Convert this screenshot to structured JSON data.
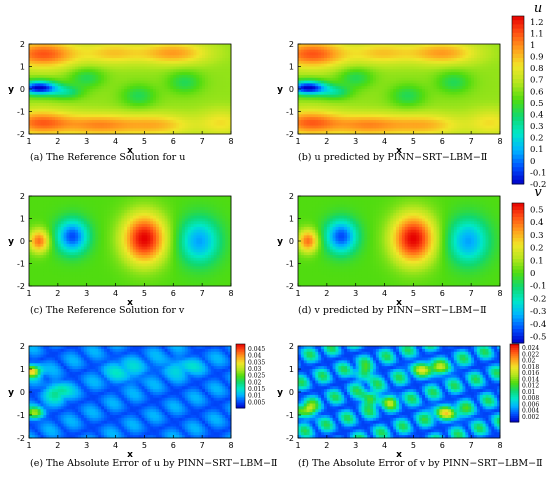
{
  "chart_data": [
    {
      "type": "heatmap",
      "title": "",
      "caption": "(a) The Reference Solution for u",
      "xlabel": "x",
      "ylabel": "y",
      "xlim": [
        1,
        8
      ],
      "ylim": [
        -2,
        2
      ],
      "xticks": [
        "1",
        "2",
        "3",
        "4",
        "5",
        "6",
        "7",
        "8"
      ],
      "yticks": [
        "2",
        "1",
        "0",
        "-1",
        "-2"
      ],
      "field": "u"
    },
    {
      "type": "heatmap",
      "title": "",
      "caption": "(b) u predicted by PINN−SRT−LBM−Ⅱ",
      "xlabel": "x",
      "ylabel": "y",
      "xlim": [
        1,
        8
      ],
      "ylim": [
        -2,
        2
      ],
      "xticks": [
        "1",
        "2",
        "3",
        "4",
        "5",
        "6",
        "7",
        "8"
      ],
      "yticks": [
        "2",
        "1",
        "0",
        "-1",
        "-2"
      ],
      "field": "u",
      "colorbar": {
        "title": "u",
        "range": [
          -0.2,
          1.25
        ],
        "ticks": [
          "1.2",
          "1.1",
          "1",
          "0.9",
          "0.8",
          "0.7",
          "0.6",
          "0.5",
          "0.4",
          "0.3",
          "0.2",
          "0.1",
          "0",
          "-0.1",
          "-0.2"
        ]
      }
    },
    {
      "type": "heatmap",
      "title": "",
      "caption": "(c) The Reference Solution for v",
      "xlabel": "x",
      "ylabel": "y",
      "xlim": [
        1,
        8
      ],
      "ylim": [
        -2,
        2
      ],
      "xticks": [
        "1",
        "2",
        "3",
        "4",
        "5",
        "6",
        "7",
        "8"
      ],
      "yticks": [
        "2",
        "1",
        "0",
        "-1",
        "-2"
      ],
      "field": "v"
    },
    {
      "type": "heatmap",
      "title": "",
      "caption": "(d) v predicted by PINN−SRT−LBM−Ⅱ",
      "xlabel": "x",
      "ylabel": "y",
      "xlim": [
        1,
        8
      ],
      "ylim": [
        -2,
        2
      ],
      "xticks": [
        "1",
        "2",
        "3",
        "4",
        "5",
        "6",
        "7",
        "8"
      ],
      "yticks": [
        "2",
        "1",
        "0",
        "-1",
        "-2"
      ],
      "field": "v",
      "colorbar": {
        "title": "v",
        "range": [
          -0.55,
          0.55
        ],
        "ticks": [
          "0.5",
          "0.4",
          "0.3",
          "0.2",
          "0.1",
          "0",
          "-0.1",
          "-0.2",
          "-0.3",
          "-0.4",
          "-0.5"
        ]
      }
    },
    {
      "type": "heatmap",
      "title": "",
      "caption": "(e) The Absolute Error of u by PINN−SRT−LBM−Ⅱ",
      "xlabel": "x",
      "ylabel": "y",
      "xlim": [
        1,
        8
      ],
      "ylim": [
        -2,
        2
      ],
      "xticks": [
        "1",
        "2",
        "3",
        "4",
        "5",
        "6",
        "7",
        "8"
      ],
      "yticks": [
        "2",
        "1",
        "0",
        "-1",
        "-2"
      ],
      "field": "err_u",
      "colorbar": {
        "title": "",
        "range": [
          0,
          0.048
        ],
        "ticks": [
          "0.045",
          "0.04",
          "0.035",
          "0.03",
          "0.025",
          "0.02",
          "0.015",
          "0.01",
          "0.005"
        ]
      }
    },
    {
      "type": "heatmap",
      "title": "",
      "caption": "(f) The Absolute Error of v by PINN−SRT−LBM−Ⅱ",
      "xlabel": "x",
      "ylabel": "y",
      "xlim": [
        1,
        8
      ],
      "ylim": [
        -2,
        2
      ],
      "xticks": [
        "1",
        "2",
        "3",
        "4",
        "5",
        "6",
        "7",
        "8"
      ],
      "yticks": [
        "2",
        "1",
        "0",
        "-1",
        "-2"
      ],
      "field": "err_v",
      "colorbar": {
        "title": "",
        "range": [
          0,
          0.025
        ],
        "ticks": [
          "0.024",
          "0.022",
          "0.02",
          "0.018",
          "0.016",
          "0.014",
          "0.012",
          "0.01",
          "0.008",
          "0.006",
          "0.004",
          "0.002"
        ]
      }
    }
  ],
  "colors": {
    "jet": [
      "#0000c8",
      "#0050ff",
      "#00b4ff",
      "#00e8c8",
      "#10d870",
      "#50dc10",
      "#b4e61e",
      "#f0e628",
      "#ffa01e",
      "#ff5014",
      "#e60000"
    ]
  }
}
